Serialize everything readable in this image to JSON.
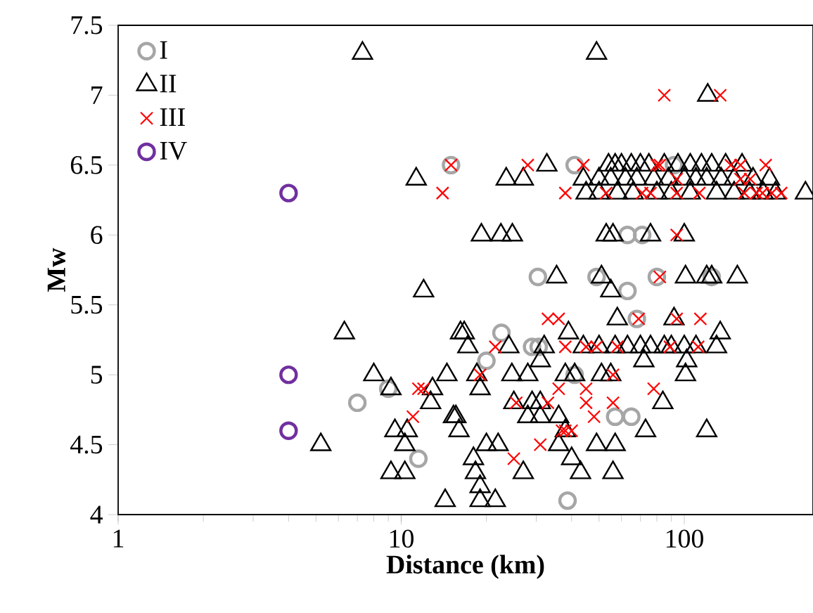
{
  "chart_data": {
    "type": "scatter",
    "xlabel": "Distance (km)",
    "ylabel": "Mw",
    "log": "x",
    "xlim": [
      1,
      285
    ],
    "xticks": [
      1,
      10,
      100
    ],
    "ylim": [
      4,
      7.5
    ],
    "yticks": [
      4,
      4.5,
      5,
      5.5,
      6,
      6.5,
      7,
      7.5
    ],
    "grid": false,
    "legend": "top left",
    "series": [
      {
        "name": "I",
        "color": "#a6a6a6",
        "marker": "circle",
        "x": [
          7,
          15,
          11.5,
          9,
          22.6,
          38.7,
          30.4,
          30.6,
          49,
          63,
          80,
          125,
          20,
          29,
          41,
          68,
          65,
          57,
          41,
          63,
          71,
          92
        ],
        "values": [
          4.8,
          6.5,
          4.4,
          4.9,
          5.3,
          4.1,
          5.7,
          5.2,
          5.7,
          5.6,
          5.7,
          5.7,
          5.1,
          5.2,
          5.0,
          5.4,
          4.7,
          4.7,
          6.5,
          6.0,
          6.0,
          6.5
        ]
      },
      {
        "name": "II",
        "color": "#000000",
        "marker": "triangle",
        "x": [
          7.3,
          49,
          121,
          11.3,
          23.5,
          27,
          32.7,
          44,
          45,
          54,
          57,
          60,
          65,
          70,
          75,
          85,
          95,
          105,
          115,
          125,
          140,
          160,
          50,
          55,
          62,
          68,
          78,
          88,
          100,
          110,
          120,
          135,
          150,
          175,
          200,
          50,
          58,
          66,
          80,
          90,
          105,
          130,
          150,
          170,
          190,
          210,
          268,
          19.2,
          22.5,
          24.7,
          53,
          56,
          76,
          100,
          35.4,
          51,
          101,
          120,
          125,
          154,
          12,
          55,
          58,
          92,
          6.3,
          16.7,
          16.2,
          39,
          134,
          17.2,
          24,
          32,
          44,
          50,
          57,
          63,
          70,
          76,
          85,
          90,
          100,
          110,
          130,
          72,
          102,
          8,
          14.5,
          24.6,
          28,
          38,
          41,
          51,
          55,
          101,
          31,
          18.5,
          9.2,
          12.9,
          19,
          25,
          29,
          31,
          84,
          12.7,
          15.3,
          15.6,
          28,
          31,
          36,
          9.5,
          16,
          73,
          120,
          10.5,
          38,
          5.2,
          10.3,
          20,
          22,
          49,
          57,
          36,
          18,
          40,
          10.3,
          27,
          18.3,
          43,
          56,
          9.2,
          19,
          14.3,
          19,
          21.5
        ],
        "values": [
          7.3,
          7.3,
          7.0,
          6.4,
          6.4,
          6.4,
          6.5,
          6.4,
          6.3,
          6.5,
          6.5,
          6.5,
          6.5,
          6.5,
          6.5,
          6.5,
          6.5,
          6.5,
          6.5,
          6.5,
          6.5,
          6.5,
          6.4,
          6.4,
          6.4,
          6.4,
          6.4,
          6.4,
          6.4,
          6.4,
          6.4,
          6.4,
          6.4,
          6.4,
          6.4,
          6.3,
          6.3,
          6.3,
          6.3,
          6.3,
          6.3,
          6.3,
          6.3,
          6.3,
          6.3,
          6.3,
          6.3,
          6.0,
          6.0,
          6.0,
          6.0,
          6.0,
          6.0,
          6.0,
          5.7,
          5.7,
          5.7,
          5.7,
          5.7,
          5.7,
          5.6,
          5.6,
          5.4,
          5.4,
          5.3,
          5.3,
          5.3,
          5.3,
          5.3,
          5.2,
          5.2,
          5.2,
          5.2,
          5.2,
          5.2,
          5.2,
          5.2,
          5.2,
          5.2,
          5.2,
          5.2,
          5.2,
          5.2,
          5.1,
          5.1,
          5.0,
          5.0,
          5.0,
          5.0,
          5.0,
          5.0,
          5.0,
          5.0,
          5.0,
          5.1,
          5.0,
          4.9,
          4.9,
          4.9,
          4.8,
          4.8,
          4.8,
          4.8,
          4.8,
          4.7,
          4.7,
          4.7,
          4.7,
          4.7,
          4.6,
          4.6,
          4.6,
          4.6,
          4.6,
          4.6,
          4.5,
          4.5,
          4.5,
          4.5,
          4.5,
          4.5,
          4.5,
          4.4,
          4.4,
          4.3,
          4.3,
          4.3,
          4.3,
          4.3,
          4.3,
          4.2,
          4.1,
          4.1,
          4.1
        ]
      },
      {
        "name": "III",
        "color": "#ff0000",
        "marker": "cross",
        "x": [
          15,
          28,
          44,
          80,
          82,
          146,
          158,
          194,
          14,
          38,
          53,
          71,
          76,
          94,
          113,
          163,
          180,
          189,
          204,
          220,
          94,
          158,
          171,
          85,
          134,
          94,
          82,
          33,
          36,
          69,
          94,
          114,
          21.5,
          38,
          45,
          49,
          58,
          89,
          112,
          19,
          56,
          12,
          36,
          45,
          78,
          11.5,
          25.5,
          33,
          56,
          45,
          48,
          11,
          37,
          38,
          40,
          31,
          25
        ],
        "values": [
          6.5,
          6.5,
          6.5,
          6.5,
          6.5,
          6.5,
          6.5,
          6.5,
          6.3,
          6.3,
          6.3,
          6.3,
          6.3,
          6.3,
          6.3,
          6.3,
          6.3,
          6.3,
          6.3,
          6.3,
          6.4,
          6.4,
          6.4,
          7.0,
          7.0,
          6.0,
          5.7,
          5.4,
          5.4,
          5.4,
          5.4,
          5.4,
          5.2,
          5.2,
          5.2,
          5.2,
          5.2,
          5.2,
          5.2,
          5.0,
          5.0,
          4.9,
          4.9,
          4.9,
          4.9,
          4.9,
          4.8,
          4.8,
          4.8,
          4.8,
          4.7,
          4.7,
          4.6,
          4.6,
          4.6,
          4.5,
          4.4
        ]
      },
      {
        "name": "IV",
        "color": "#7030a0",
        "marker": "circle",
        "x": [
          4,
          4,
          4
        ],
        "values": [
          6.3,
          5.0,
          4.6
        ]
      }
    ]
  }
}
